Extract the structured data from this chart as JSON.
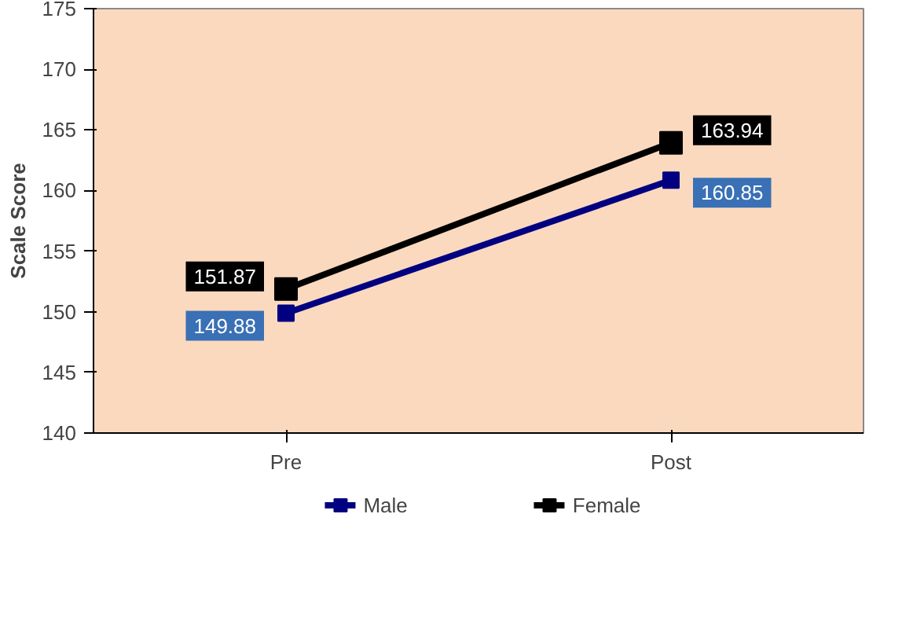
{
  "chart_data": {
    "type": "line",
    "ylabel": "Scale Score",
    "categories": [
      "Pre",
      "Post"
    ],
    "series": [
      {
        "name": "Male",
        "color": "#000080",
        "values": [
          149.88,
          160.85
        ]
      },
      {
        "name": "Female",
        "color": "#000000",
        "values": [
          151.87,
          163.94
        ]
      }
    ],
    "ylim": [
      140,
      175
    ],
    "yticks": [
      140,
      145,
      150,
      155,
      160,
      165,
      170,
      175
    ],
    "grid": false,
    "legend": "bottom",
    "marker": "square",
    "data_labels": true
  }
}
